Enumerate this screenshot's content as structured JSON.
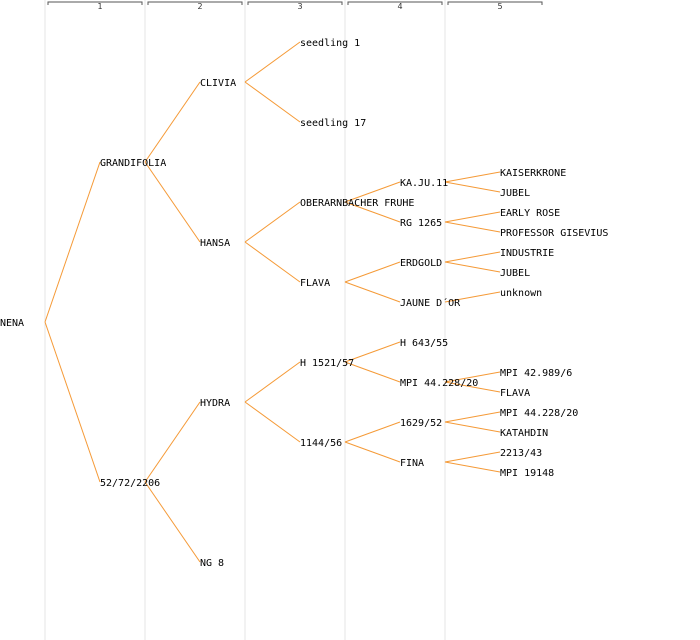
{
  "colors": {
    "edge": "#f59a37",
    "column_line": "#e5e5e5",
    "ruler": "#555555",
    "text": "#000000"
  },
  "generations": [
    "1",
    "2",
    "3",
    "4",
    "5"
  ],
  "tree": {
    "label": "NENA",
    "children": [
      {
        "label": "GRANDIFOLIA",
        "children": [
          {
            "label": "CLIVIA",
            "children": [
              {
                "label": "seedling 1"
              },
              {
                "label": "seedling 17"
              }
            ]
          },
          {
            "label": "HANSA",
            "children": [
              {
                "label": "OBERARNBACHER FRUHE",
                "children": [
                  {
                    "label": "KA.JU.11",
                    "children": [
                      {
                        "label": "KAISERKRONE"
                      },
                      {
                        "label": "JUBEL"
                      }
                    ]
                  },
                  {
                    "label": "RG 1265",
                    "children": [
                      {
                        "label": "EARLY ROSE"
                      },
                      {
                        "label": "PROFESSOR GISEVIUS"
                      }
                    ]
                  }
                ]
              },
              {
                "label": "FLAVA",
                "children": [
                  {
                    "label": "ERDGOLD",
                    "children": [
                      {
                        "label": "INDUSTRIE"
                      },
                      {
                        "label": "JUBEL"
                      }
                    ]
                  },
                  {
                    "label": "JAUNE D´OR",
                    "children": [
                      {
                        "label": "unknown"
                      }
                    ]
                  }
                ]
              }
            ]
          }
        ]
      },
      {
        "label": "52/72/2206",
        "children": [
          {
            "label": "HYDRA",
            "children": [
              {
                "label": "H 1521/57",
                "children": [
                  {
                    "label": "H 643/55"
                  },
                  {
                    "label": "MPI 44.228/20",
                    "children": [
                      {
                        "label": "MPI 42.989/6"
                      },
                      {
                        "label": "FLAVA"
                      }
                    ]
                  }
                ]
              },
              {
                "label": "1144/56",
                "children": [
                  {
                    "label": "1629/52",
                    "children": [
                      {
                        "label": "MPI 44.228/20"
                      },
                      {
                        "label": "KATAHDIN"
                      }
                    ]
                  },
                  {
                    "label": "FINA",
                    "children": [
                      {
                        "label": "2213/43"
                      },
                      {
                        "label": "MPI 19148"
                      }
                    ]
                  }
                ]
              }
            ]
          },
          {
            "label": "NG 8"
          }
        ]
      }
    ]
  }
}
